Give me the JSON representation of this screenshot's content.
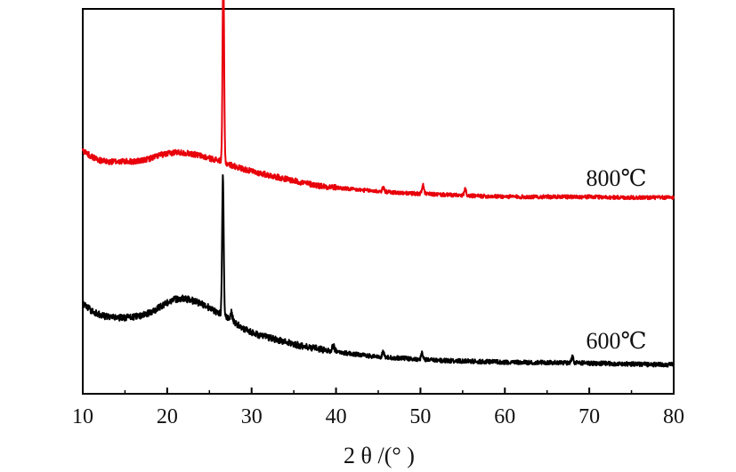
{
  "chart_data": {
    "type": "line",
    "xlabel": "2 θ /(°  )",
    "ylabel": "",
    "xlim": [
      10,
      80
    ],
    "xticks": [
      10,
      20,
      30,
      40,
      50,
      60,
      70,
      80
    ],
    "yticks_shown": false,
    "grid": false,
    "colors": {
      "800℃": "#e8000b",
      "600℃": "#000000"
    },
    "series": [
      {
        "name": "800℃",
        "color": "#e8000b",
        "label_at": 73,
        "anchors": [
          [
            10,
            0.9
          ],
          [
            11,
            0.8
          ],
          [
            12,
            0.74
          ],
          [
            13,
            0.71
          ],
          [
            14,
            0.72
          ],
          [
            15,
            0.72
          ],
          [
            16,
            0.72
          ],
          [
            17,
            0.73
          ],
          [
            18,
            0.77
          ],
          [
            19,
            0.82
          ],
          [
            20,
            0.84
          ],
          [
            21,
            0.87
          ],
          [
            22,
            0.86
          ],
          [
            23,
            0.84
          ],
          [
            24,
            0.81
          ],
          [
            25,
            0.77
          ],
          [
            26,
            0.74
          ],
          [
            26.5,
            0.73
          ],
          [
            27,
            0.69
          ],
          [
            28,
            0.64
          ],
          [
            29,
            0.6
          ],
          [
            30,
            0.56
          ],
          [
            31,
            0.53
          ],
          [
            32,
            0.5
          ],
          [
            33,
            0.47
          ],
          [
            34,
            0.44
          ],
          [
            35,
            0.41
          ],
          [
            36,
            0.38
          ],
          [
            38,
            0.33
          ],
          [
            40,
            0.3
          ],
          [
            42,
            0.27
          ],
          [
            44,
            0.25
          ],
          [
            46,
            0.23
          ],
          [
            48,
            0.21
          ],
          [
            50,
            0.2
          ],
          [
            52,
            0.19
          ],
          [
            55,
            0.17
          ],
          [
            58,
            0.16
          ],
          [
            62,
            0.15
          ],
          [
            66,
            0.15
          ],
          [
            70,
            0.15
          ],
          [
            74,
            0.14
          ],
          [
            78,
            0.14
          ],
          [
            80,
            0.14
          ]
        ],
        "peaks": [
          [
            26.65,
            3.1
          ],
          [
            50.3,
            0.14
          ],
          [
            55.3,
            0.1
          ],
          [
            45.6,
            0.06
          ]
        ]
      },
      {
        "name": "600℃",
        "color": "#000000",
        "label_at": 73,
        "anchors": [
          [
            10,
            0.92
          ],
          [
            11,
            0.82
          ],
          [
            12,
            0.76
          ],
          [
            13,
            0.73
          ],
          [
            14,
            0.72
          ],
          [
            15,
            0.72
          ],
          [
            16,
            0.73
          ],
          [
            17,
            0.75
          ],
          [
            18,
            0.79
          ],
          [
            19,
            0.86
          ],
          [
            20,
            0.93
          ],
          [
            21,
            0.98
          ],
          [
            22,
            0.99
          ],
          [
            23,
            0.96
          ],
          [
            24,
            0.92
          ],
          [
            25,
            0.86
          ],
          [
            26,
            0.79
          ],
          [
            26.5,
            0.77
          ],
          [
            27,
            0.73
          ],
          [
            28,
            0.65
          ],
          [
            29,
            0.57
          ],
          [
            30,
            0.51
          ],
          [
            31,
            0.47
          ],
          [
            32,
            0.44
          ],
          [
            33,
            0.41
          ],
          [
            34,
            0.38
          ],
          [
            35,
            0.35
          ],
          [
            36,
            0.32
          ],
          [
            38,
            0.28
          ],
          [
            40,
            0.24
          ],
          [
            42,
            0.21
          ],
          [
            44,
            0.18
          ],
          [
            46,
            0.16
          ],
          [
            48,
            0.15
          ],
          [
            50,
            0.13
          ],
          [
            52,
            0.12
          ],
          [
            55,
            0.11
          ],
          [
            58,
            0.1
          ],
          [
            62,
            0.09
          ],
          [
            66,
            0.09
          ],
          [
            70,
            0.08
          ],
          [
            74,
            0.07
          ],
          [
            78,
            0.06
          ],
          [
            80,
            0.06
          ]
        ],
        "peaks": [
          [
            26.6,
            1.95
          ],
          [
            39.7,
            0.08
          ],
          [
            45.6,
            0.08
          ],
          [
            50.2,
            0.09
          ],
          [
            68.0,
            0.08
          ],
          [
            27.6,
            0.12
          ]
        ]
      }
    ]
  }
}
